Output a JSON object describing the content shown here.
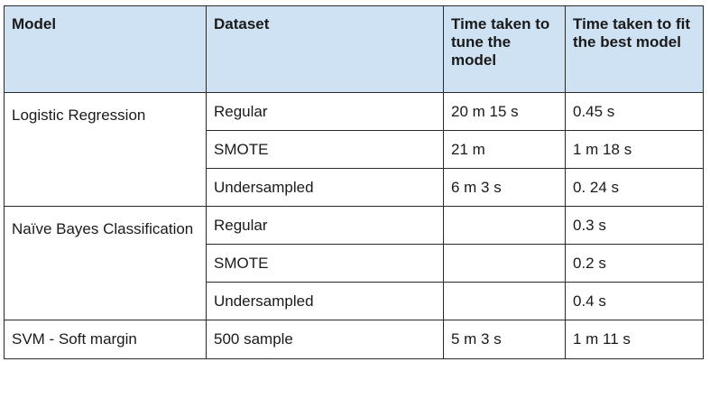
{
  "table": {
    "headers": [
      "Model",
      "Dataset",
      "Time taken to tune the model",
      "Time taken to fit the best model"
    ],
    "groups": [
      {
        "model": "Logistic Regression",
        "rows": [
          {
            "dataset": "Regular",
            "tune_time": "20 m 15 s",
            "fit_time": "0.45 s"
          },
          {
            "dataset": "SMOTE",
            "tune_time": "21 m",
            "fit_time": "1 m 18 s"
          },
          {
            "dataset": "Undersampled",
            "tune_time": "6 m 3 s",
            "fit_time": "0. 24 s"
          }
        ]
      },
      {
        "model": "Naïve Bayes Classification",
        "rows": [
          {
            "dataset": "Regular",
            "tune_time": "",
            "fit_time": "0.3 s"
          },
          {
            "dataset": "SMOTE",
            "tune_time": "",
            "fit_time": "0.2 s"
          },
          {
            "dataset": "Undersampled",
            "tune_time": "",
            "fit_time": "0.4 s"
          }
        ]
      },
      {
        "model": "SVM - Soft margin",
        "rows": [
          {
            "dataset": "500 sample",
            "tune_time": "5 m 3 s",
            "fit_time": "1 m 11 s"
          }
        ]
      }
    ],
    "colors": {
      "header_background": "#cfe2f3",
      "border": "#2a2a2a",
      "text": "#1a1a1a"
    }
  }
}
